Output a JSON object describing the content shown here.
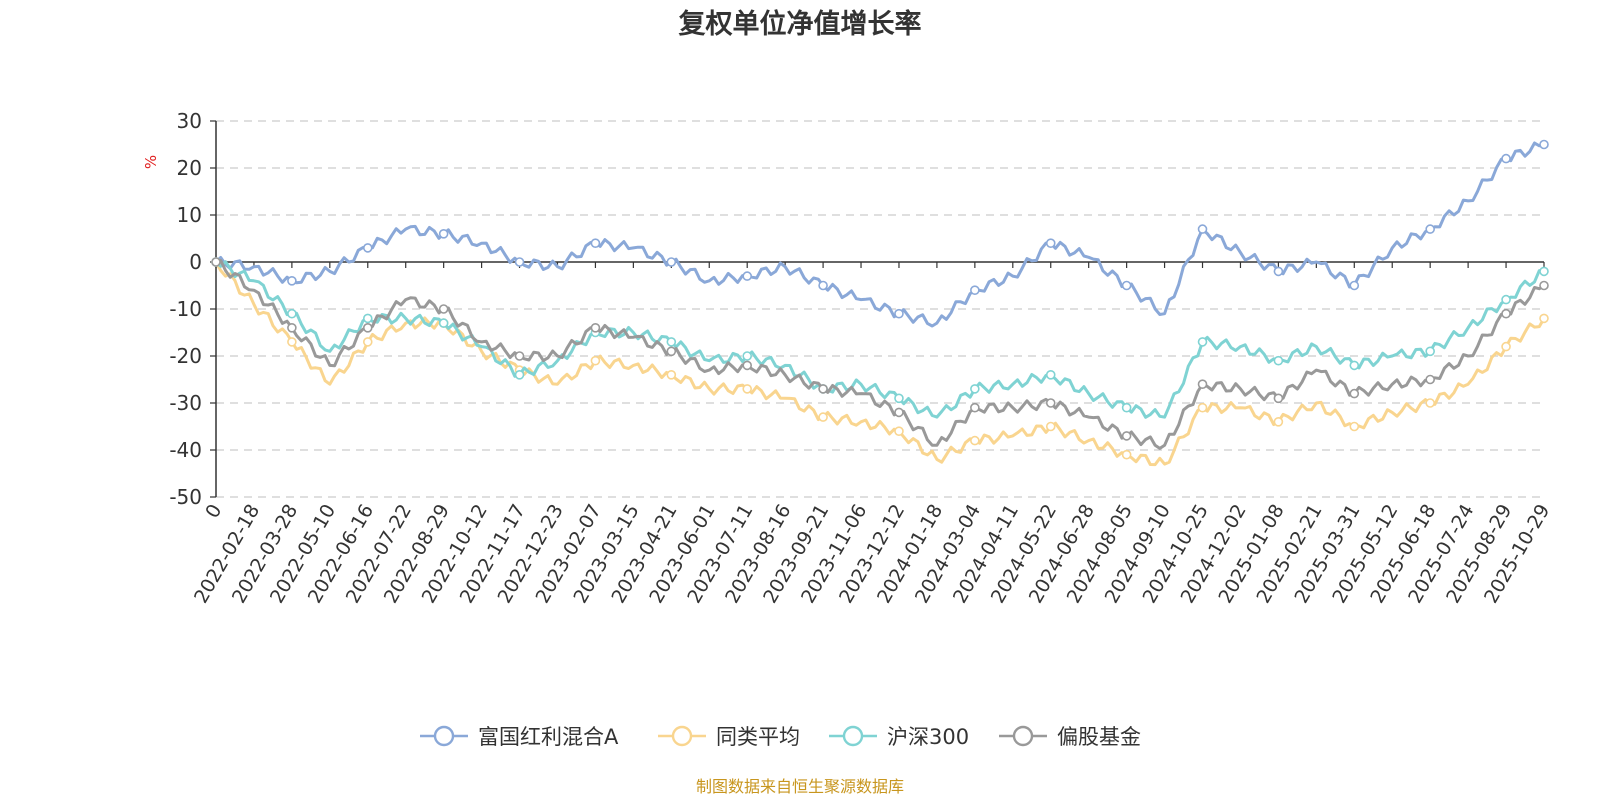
{
  "source_note": "制图数据来自恒生聚源数据库",
  "colors": {
    "fund": "#8aa8d8",
    "peer_avg": "#f9d58f",
    "hs300": "#7fd3d3",
    "equity_fund": "#999999",
    "source": "#c8961e",
    "unit": "#e02020"
  },
  "chart_data": {
    "type": "line",
    "title": "复权单位净值增长率",
    "ylabel": "%",
    "xlabel": "",
    "ylim": [
      -50,
      30
    ],
    "yticks": [
      30,
      20,
      10,
      0,
      -10,
      -20,
      -30,
      -40,
      -50
    ],
    "grid": true,
    "legend_position": "bottom-center",
    "categories": [
      "0",
      "2022-02-18",
      "2022-03-28",
      "2022-05-10",
      "2022-06-16",
      "2022-07-22",
      "2022-08-29",
      "2022-10-12",
      "2022-11-17",
      "2022-12-23",
      "2023-02-07",
      "2023-03-15",
      "2023-04-21",
      "2023-06-01",
      "2023-07-11",
      "2023-08-16",
      "2023-09-21",
      "2023-11-06",
      "2023-12-12",
      "2024-01-18",
      "2024-03-04",
      "2024-04-11",
      "2024-05-22",
      "2024-06-28",
      "2024-08-05",
      "2024-09-10",
      "2024-10-25",
      "2024-12-02",
      "2025-01-08",
      "2025-02-21",
      "2025-03-31",
      "2025-05-12",
      "2025-06-18",
      "2025-07-24",
      "2025-08-29",
      "2025-10-29"
    ],
    "series": [
      {
        "name": "富国红利混合A",
        "color": "#8aa8d8",
        "values": [
          0,
          -1,
          -4,
          -2,
          3,
          7,
          6,
          4,
          0,
          -1,
          4,
          3,
          0,
          -4,
          -3,
          -1,
          -5,
          -8,
          -11,
          -13,
          -6,
          -3,
          4,
          1,
          -5,
          -11,
          7,
          2,
          -2,
          0,
          -5,
          3,
          7,
          13,
          22,
          25
        ]
      },
      {
        "name": "同类平均",
        "color": "#f9d58f",
        "values": [
          0,
          -9,
          -17,
          -26,
          -17,
          -13,
          -13,
          -19,
          -23,
          -26,
          -21,
          -22,
          -24,
          -27,
          -27,
          -29,
          -33,
          -34,
          -36,
          -42,
          -38,
          -37,
          -35,
          -38,
          -41,
          -43,
          -31,
          -31,
          -34,
          -30,
          -35,
          -32,
          -30,
          -26,
          -18,
          -12
        ]
      },
      {
        "name": "沪深300",
        "color": "#7fd3d3",
        "values": [
          0,
          -4,
          -11,
          -19,
          -12,
          -12,
          -13,
          -18,
          -24,
          -21,
          -15,
          -15,
          -17,
          -21,
          -20,
          -22,
          -27,
          -26,
          -29,
          -33,
          -27,
          -26,
          -24,
          -28,
          -31,
          -33,
          -17,
          -18,
          -21,
          -18,
          -22,
          -20,
          -19,
          -14,
          -8,
          -2
        ]
      },
      {
        "name": "偏股基金",
        "color": "#999999",
        "values": [
          0,
          -6,
          -14,
          -22,
          -14,
          -8,
          -10,
          -17,
          -20,
          -20,
          -14,
          -16,
          -19,
          -23,
          -22,
          -24,
          -27,
          -28,
          -32,
          -39,
          -31,
          -31,
          -30,
          -33,
          -37,
          -39,
          -26,
          -27,
          -29,
          -23,
          -28,
          -26,
          -25,
          -20,
          -11,
          -5
        ]
      }
    ]
  }
}
